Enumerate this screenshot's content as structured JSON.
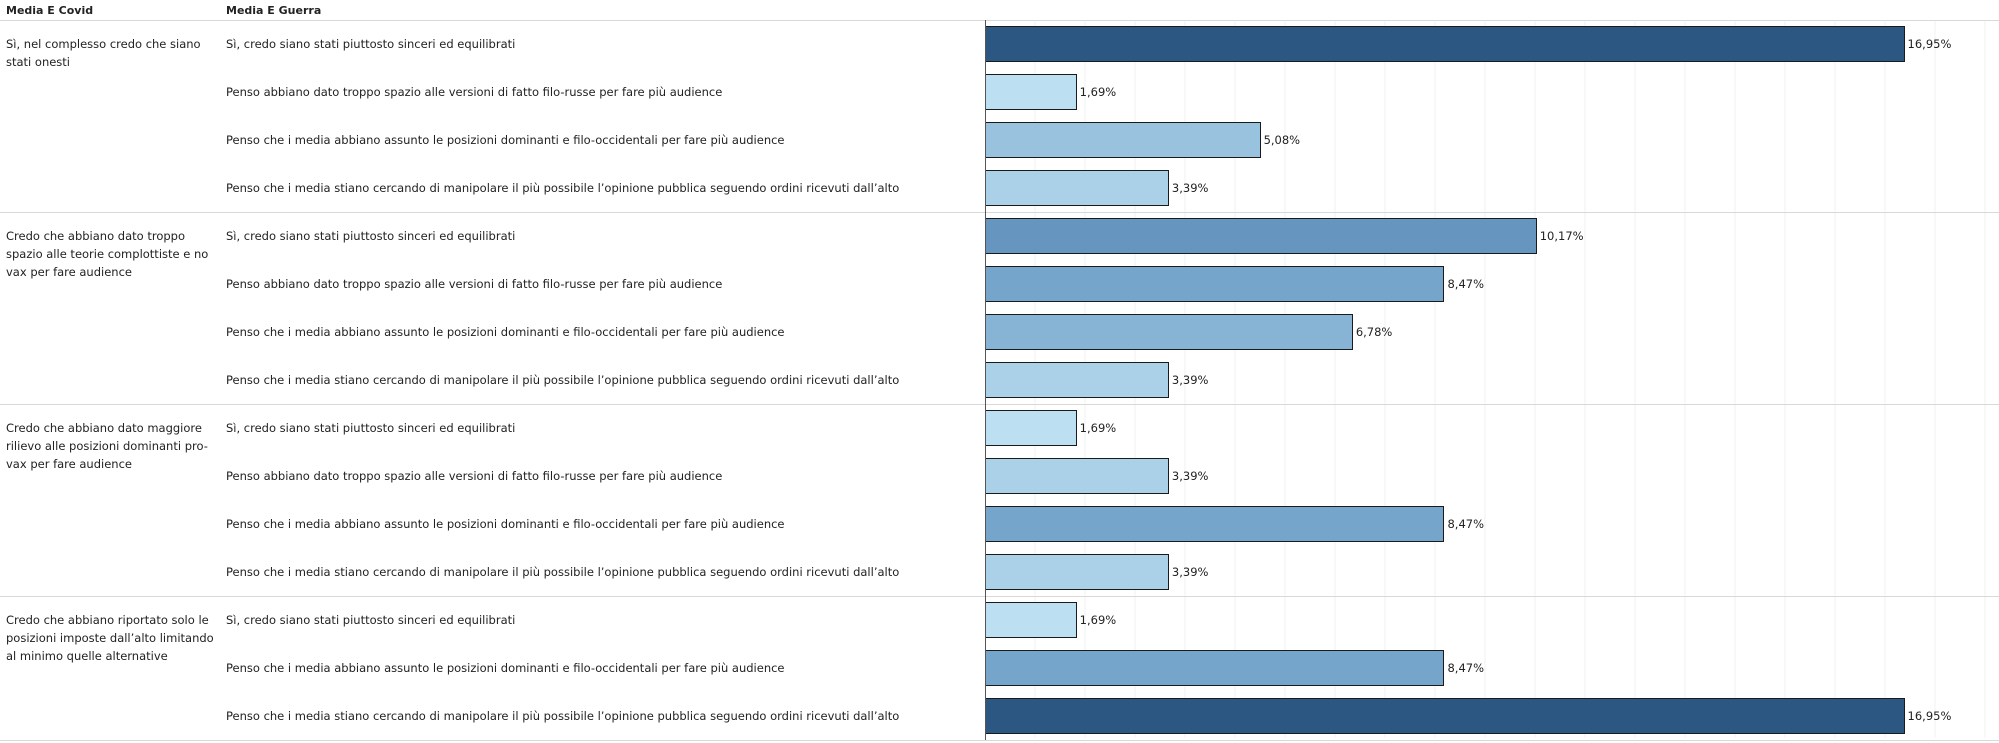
{
  "header": {
    "col1": "Media E Covid",
    "col2": "Media E Guerra"
  },
  "chart_data": {
    "type": "bar",
    "orientation": "horizontal",
    "xlim": [
      0,
      0.2
    ],
    "grid": true,
    "color_scale": {
      "low": "#bcdff1",
      "mid": "#6d9ec7",
      "high": "#2c5783"
    },
    "groups": [
      {
        "label": "Sì, nel complesso credo che siano stati onesti",
        "rows": [
          {
            "label": "Sì, credo siano stati piuttosto sinceri ed equilibrati",
            "value": 16.95,
            "text": "16,95%"
          },
          {
            "label": "Penso abbiano dato troppo spazio alle versioni di fatto filo-russe per fare più audience",
            "value": 1.69,
            "text": "1,69%"
          },
          {
            "label": "Penso che i media abbiano assunto le posizioni dominanti e filo-occidentali per fare più audience",
            "value": 5.08,
            "text": "5,08%"
          },
          {
            "label": "Penso che i media stiano cercando di manipolare il più possibile l’opinione pubblica seguendo ordini ricevuti dall’alto",
            "value": 3.39,
            "text": "3,39%"
          }
        ]
      },
      {
        "label": "Credo che abbiano dato troppo spazio alle teorie complottiste e no vax per fare audience",
        "rows": [
          {
            "label": "Sì, credo siano stati piuttosto sinceri ed equilibrati",
            "value": 10.17,
            "text": "10,17%"
          },
          {
            "label": "Penso abbiano dato troppo spazio alle versioni di fatto filo-russe per fare più audience",
            "value": 8.47,
            "text": "8,47%"
          },
          {
            "label": "Penso che i media abbiano assunto le posizioni dominanti e filo-occidentali per fare più audience",
            "value": 6.78,
            "text": "6,78%"
          },
          {
            "label": "Penso che i media stiano cercando di manipolare il più possibile l’opinione pubblica seguendo ordini ricevuti dall’alto",
            "value": 3.39,
            "text": "3,39%"
          }
        ]
      },
      {
        "label": "Credo che abbiano dato maggiore rilievo alle posizioni dominanti pro-vax per fare audience",
        "rows": [
          {
            "label": "Sì, credo siano stati piuttosto sinceri ed equilibrati",
            "value": 1.69,
            "text": "1,69%"
          },
          {
            "label": "Penso abbiano dato troppo spazio alle versioni di fatto filo-russe per fare più audience",
            "value": 3.39,
            "text": "3,39%"
          },
          {
            "label": "Penso che i media abbiano assunto le posizioni dominanti e filo-occidentali per fare più audience",
            "value": 8.47,
            "text": "8,47%"
          },
          {
            "label": "Penso che i media stiano cercando di manipolare il più possibile l’opinione pubblica seguendo ordini ricevuti dall’alto",
            "value": 3.39,
            "text": "3,39%"
          }
        ]
      },
      {
        "label": "Credo che abbiano riportato solo le posizioni imposte dall’alto limitando al minimo quelle alternative",
        "rows": [
          {
            "label": "Sì, credo siano stati piuttosto sinceri ed equilibrati",
            "value": 1.69,
            "text": "1,69%"
          },
          {
            "label": "Penso che i media abbiano assunto le posizioni dominanti e filo-occidentali per fare più audience",
            "value": 8.47,
            "text": "8,47%"
          },
          {
            "label": "Penso che i media stiano cercando di manipolare il più possibile l’opinione pubblica seguendo ordini ricevuti dall’alto",
            "value": 16.95,
            "text": "16,95%"
          }
        ]
      }
    ]
  }
}
